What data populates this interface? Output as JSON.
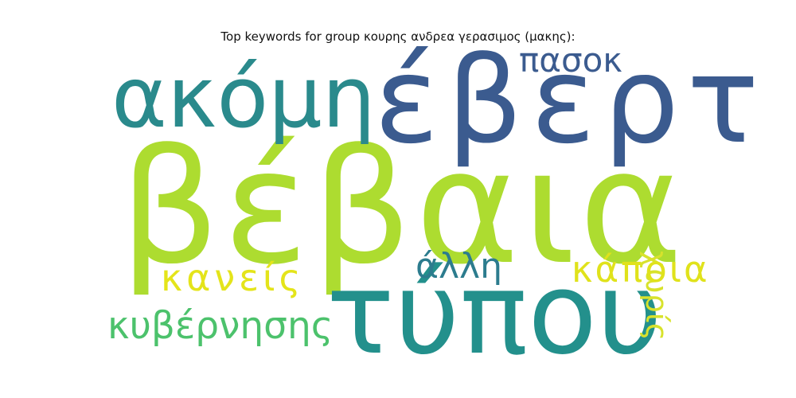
{
  "figure": {
    "title": "Top keywords for group κουρης ανδρεα γερασιμος (μακης):"
  },
  "words": [
    {
      "text": "βέβαια",
      "color": "#addc30"
    },
    {
      "text": "έβερτ",
      "color": "#3b5b8f"
    },
    {
      "text": "ακόμη",
      "color": "#2a8a8c"
    },
    {
      "text": "τύπου",
      "color": "#23908c"
    },
    {
      "text": "πασοκ",
      "color": "#3b5b8f"
    },
    {
      "text": "χωρίς",
      "color": "#d8e22c"
    },
    {
      "text": "κανείς",
      "color": "#e4e41a"
    },
    {
      "text": "άλλη",
      "color": "#2c7c8e"
    },
    {
      "text": "κάποια",
      "color": "#e0e21b"
    },
    {
      "text": "κυβέρνησης",
      "color": "#4cc26c"
    }
  ]
}
